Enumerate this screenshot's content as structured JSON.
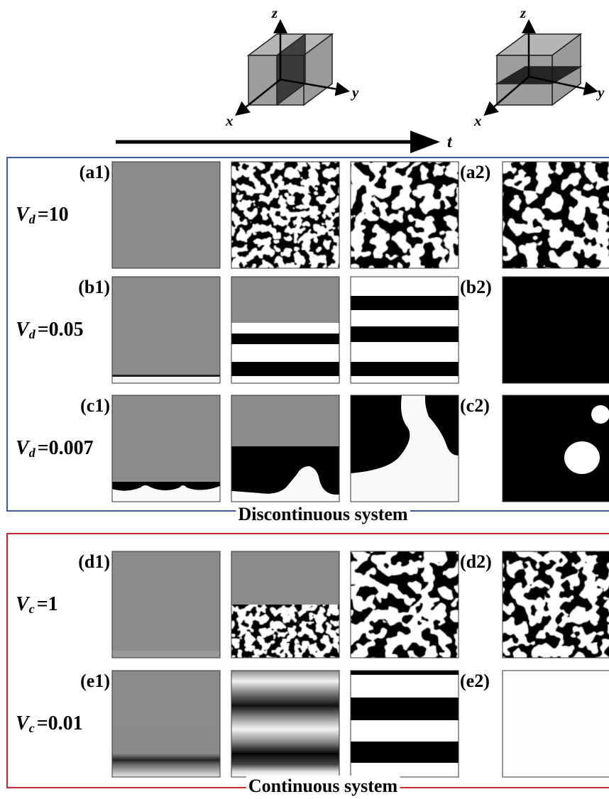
{
  "cubes": [
    {
      "z": "z",
      "y": "y",
      "x": "x"
    },
    {
      "z": "z",
      "y": "y",
      "x": "x"
    }
  ],
  "time_label": "t",
  "groups": [
    {
      "title": "Discontinuous system",
      "rows": [
        {
          "panel1": "(a1)",
          "panel2": "(a2)",
          "symbol": "V",
          "subscript": "d",
          "value": "=10"
        },
        {
          "panel1": "(b1)",
          "panel2": "(b2)",
          "symbol": "V",
          "subscript": "d",
          "value": "=0.05"
        },
        {
          "panel1": "(c1)",
          "panel2": "(c2)",
          "symbol": "V",
          "subscript": "d",
          "value": "=0.007"
        }
      ]
    },
    {
      "title": "Continuous system",
      "rows": [
        {
          "panel1": "(d1)",
          "panel2": "(d2)",
          "symbol": "V",
          "subscript": "c",
          "value": "=1"
        },
        {
          "panel1": "(e1)",
          "panel2": "(e2)",
          "symbol": "V",
          "subscript": "c",
          "value": "=0.01"
        }
      ]
    }
  ]
}
